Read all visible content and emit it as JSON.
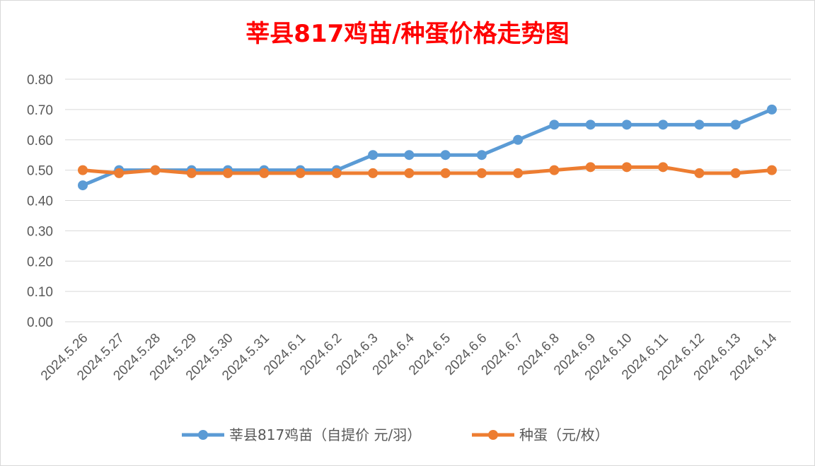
{
  "chart_data": {
    "type": "line",
    "title": "莘县817鸡苗/种蛋价格走势图",
    "title_color": "#ff0000",
    "categories": [
      "2024.5.26",
      "2024.5.27",
      "2024.5.28",
      "2024.5.29",
      "2024.5.30",
      "2024.5.31",
      "2024.6.1",
      "2024.6.2",
      "2024.6.3",
      "2024.6.4",
      "2024.6.5",
      "2024.6.6",
      "2024.6.7",
      "2024.6.8",
      "2024.6.9",
      "2024.6.10",
      "2024.6.11",
      "2024.6.12",
      "2024.6.13",
      "2024.6.14"
    ],
    "series": [
      {
        "name": "莘县817鸡苗（自提价 元/羽）",
        "color": "#5b9bd5",
        "values": [
          0.45,
          0.5,
          0.5,
          0.5,
          0.5,
          0.5,
          0.5,
          0.5,
          0.55,
          0.55,
          0.55,
          0.55,
          0.6,
          0.65,
          0.65,
          0.65,
          0.65,
          0.65,
          0.65,
          0.7
        ]
      },
      {
        "name": "种蛋（元/枚）",
        "color": "#ed7d31",
        "values": [
          0.5,
          0.49,
          0.5,
          0.49,
          0.49,
          0.49,
          0.49,
          0.49,
          0.49,
          0.49,
          0.49,
          0.49,
          0.49,
          0.5,
          0.51,
          0.51,
          0.51,
          0.49,
          0.49,
          0.5
        ]
      }
    ],
    "ylim": [
      0,
      0.8
    ],
    "yticks": [
      "0.00",
      "0.10",
      "0.20",
      "0.30",
      "0.40",
      "0.50",
      "0.60",
      "0.70",
      "0.80"
    ],
    "grid": "horizontal",
    "legend_position": "bottom"
  }
}
